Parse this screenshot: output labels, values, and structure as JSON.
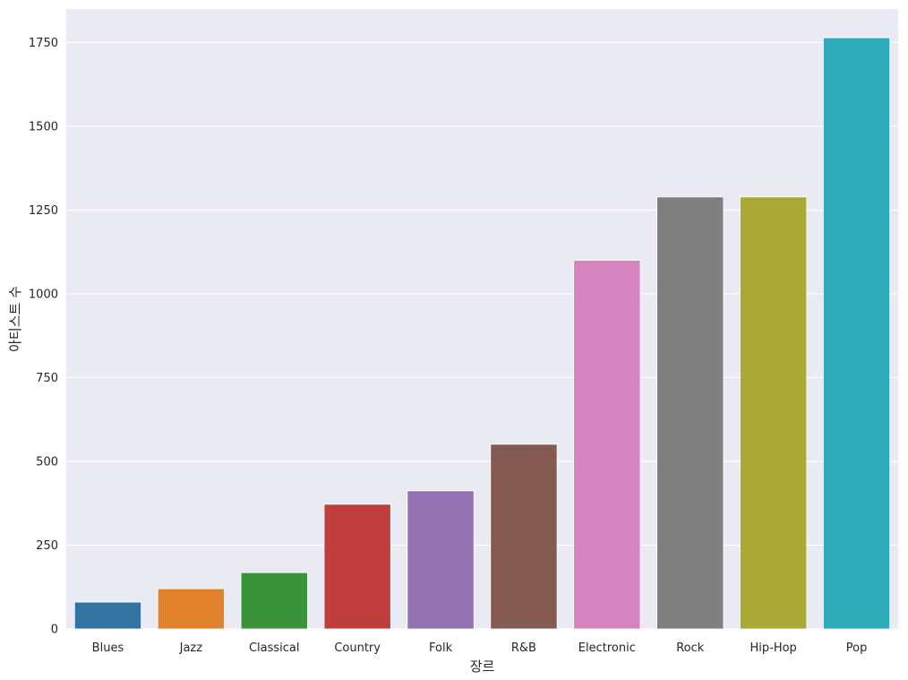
{
  "chart_data": {
    "type": "bar",
    "title": "",
    "xlabel": "장르",
    "ylabel": "아티스트 수",
    "categories": [
      "Blues",
      "Jazz",
      "Classical",
      "Country",
      "Folk",
      "R&B",
      "Electronic",
      "Rock",
      "Hip-Hop",
      "Pop"
    ],
    "values": [
      80,
      120,
      168,
      372,
      412,
      551,
      1100,
      1289,
      1289,
      1764
    ],
    "colors": [
      "#3274a1",
      "#e1812c",
      "#3a923a",
      "#c03d3e",
      "#9372b2",
      "#845b53",
      "#d684bd",
      "#7f7f7f",
      "#a9aa35",
      "#2eabb8"
    ],
    "ylim": [
      0,
      1850
    ],
    "yticks": [
      0,
      250,
      500,
      750,
      1000,
      1250,
      1500,
      1750
    ],
    "grid": true,
    "background": "#eaeaf2"
  }
}
